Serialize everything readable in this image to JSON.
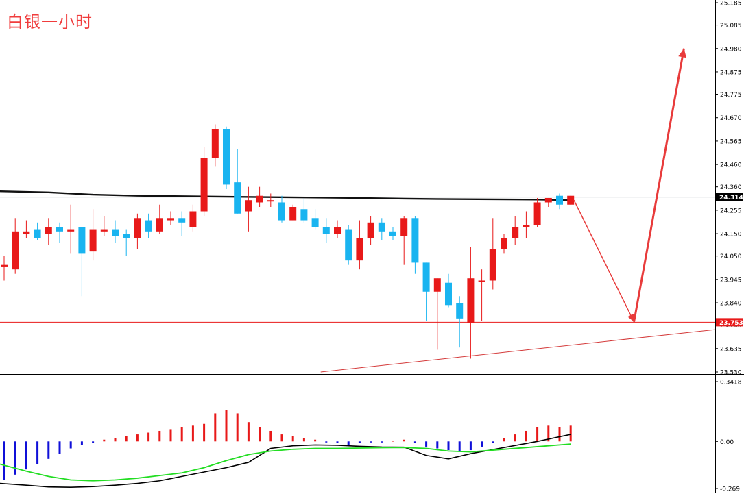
{
  "title": "白银一小时",
  "colors": {
    "bull": "#e81919",
    "bear": "#19b4f0",
    "ma_line": "#111111",
    "current_price_line": "#9aa0a6",
    "support_line": "#e81919",
    "trend_line": "#d43a3a",
    "forecast_arrow": "#e83b3b",
    "macd_pos": "#e81919",
    "macd_neg": "#1010d8",
    "signal_line": "#22dd22",
    "macd_line": "#000000",
    "tag_text": "#ffffff"
  },
  "price_axis": {
    "ticks": [
      "25.185",
      "25.085",
      "24.980",
      "24.875",
      "24.775",
      "24.670",
      "24.565",
      "24.460",
      "24.360",
      "24.255",
      "24.150",
      "24.050",
      "23.945",
      "23.840",
      "23.740",
      "23.635",
      "23.530"
    ],
    "current_price": "24.314",
    "level_price": "23.753"
  },
  "indicator_axis": {
    "ticks": [
      "0.3418",
      "0.00",
      "-0.269"
    ]
  },
  "chart_data": [
    {
      "type": "candlestick",
      "title": "白银一小时",
      "ylim": [
        23.52,
        25.2
      ],
      "candles": [
        {
          "o": 24.0,
          "h": 24.05,
          "l": 23.94,
          "c": 24.01
        },
        {
          "o": 23.99,
          "h": 24.22,
          "l": 23.97,
          "c": 24.16
        },
        {
          "o": 24.15,
          "h": 24.21,
          "l": 24.13,
          "c": 24.16
        },
        {
          "o": 24.17,
          "h": 24.2,
          "l": 24.12,
          "c": 24.13
        },
        {
          "o": 24.15,
          "h": 24.22,
          "l": 24.1,
          "c": 24.18
        },
        {
          "o": 24.18,
          "h": 24.2,
          "l": 24.11,
          "c": 24.16
        },
        {
          "o": 24.16,
          "h": 24.28,
          "l": 24.06,
          "c": 24.17
        },
        {
          "o": 24.18,
          "h": 24.18,
          "l": 23.87,
          "c": 24.06
        },
        {
          "o": 24.07,
          "h": 24.26,
          "l": 24.03,
          "c": 24.17
        },
        {
          "o": 24.16,
          "h": 24.23,
          "l": 24.14,
          "c": 24.17
        },
        {
          "o": 24.17,
          "h": 24.21,
          "l": 24.11,
          "c": 24.14
        },
        {
          "o": 24.15,
          "h": 24.17,
          "l": 24.05,
          "c": 24.13
        },
        {
          "o": 24.13,
          "h": 24.24,
          "l": 24.08,
          "c": 24.22
        },
        {
          "o": 24.21,
          "h": 24.24,
          "l": 24.13,
          "c": 24.16
        },
        {
          "o": 24.16,
          "h": 24.28,
          "l": 24.15,
          "c": 24.22
        },
        {
          "o": 24.21,
          "h": 24.25,
          "l": 24.19,
          "c": 24.22
        },
        {
          "o": 24.22,
          "h": 24.25,
          "l": 24.14,
          "c": 24.2
        },
        {
          "o": 24.18,
          "h": 24.28,
          "l": 24.16,
          "c": 24.25
        },
        {
          "o": 24.25,
          "h": 24.54,
          "l": 24.23,
          "c": 24.49
        },
        {
          "o": 24.49,
          "h": 24.64,
          "l": 24.45,
          "c": 24.62
        },
        {
          "o": 24.62,
          "h": 24.63,
          "l": 24.35,
          "c": 24.37
        },
        {
          "o": 24.38,
          "h": 24.53,
          "l": 24.24,
          "c": 24.24
        },
        {
          "o": 24.25,
          "h": 24.36,
          "l": 24.16,
          "c": 24.3
        },
        {
          "o": 24.29,
          "h": 24.36,
          "l": 24.27,
          "c": 24.32
        },
        {
          "o": 24.3,
          "h": 24.33,
          "l": 24.27,
          "c": 24.3
        },
        {
          "o": 24.29,
          "h": 24.32,
          "l": 24.2,
          "c": 24.21
        },
        {
          "o": 24.21,
          "h": 24.28,
          "l": 24.21,
          "c": 24.27
        },
        {
          "o": 24.26,
          "h": 24.31,
          "l": 24.2,
          "c": 24.21
        },
        {
          "o": 24.22,
          "h": 24.26,
          "l": 24.17,
          "c": 24.18
        },
        {
          "o": 24.18,
          "h": 24.22,
          "l": 24.11,
          "c": 24.15
        },
        {
          "o": 24.15,
          "h": 24.21,
          "l": 24.13,
          "c": 24.18
        },
        {
          "o": 24.17,
          "h": 24.19,
          "l": 24.01,
          "c": 24.03
        },
        {
          "o": 24.03,
          "h": 24.21,
          "l": 23.99,
          "c": 24.13
        },
        {
          "o": 24.13,
          "h": 24.23,
          "l": 24.1,
          "c": 24.2
        },
        {
          "o": 24.2,
          "h": 24.22,
          "l": 24.12,
          "c": 24.16
        },
        {
          "o": 24.16,
          "h": 24.18,
          "l": 24.12,
          "c": 24.14
        },
        {
          "o": 24.14,
          "h": 24.23,
          "l": 24.01,
          "c": 24.22
        },
        {
          "o": 24.22,
          "h": 24.23,
          "l": 23.97,
          "c": 24.02
        },
        {
          "o": 24.02,
          "h": 24.02,
          "l": 23.76,
          "c": 23.89
        },
        {
          "o": 23.89,
          "h": 23.95,
          "l": 23.63,
          "c": 23.95
        },
        {
          "o": 23.93,
          "h": 23.97,
          "l": 23.82,
          "c": 23.83
        },
        {
          "o": 23.84,
          "h": 23.87,
          "l": 23.64,
          "c": 23.77
        },
        {
          "o": 23.75,
          "h": 24.09,
          "l": 23.59,
          "c": 23.95
        },
        {
          "o": 23.94,
          "h": 23.99,
          "l": 23.76,
          "c": 23.94
        },
        {
          "o": 23.94,
          "h": 24.22,
          "l": 23.9,
          "c": 24.08
        },
        {
          "o": 24.08,
          "h": 24.15,
          "l": 24.06,
          "c": 24.13
        },
        {
          "o": 24.13,
          "h": 24.23,
          "l": 24.1,
          "c": 24.18
        },
        {
          "o": 24.18,
          "h": 24.25,
          "l": 24.13,
          "c": 24.19
        },
        {
          "o": 24.19,
          "h": 24.31,
          "l": 24.18,
          "c": 24.29
        },
        {
          "o": 24.29,
          "h": 24.31,
          "l": 24.27,
          "c": 24.31
        },
        {
          "o": 24.32,
          "h": 24.33,
          "l": 24.26,
          "c": 24.28
        },
        {
          "o": 24.28,
          "h": 24.32,
          "l": 24.28,
          "c": 24.32
        }
      ],
      "moving_average": [
        24.34,
        24.335,
        24.325,
        24.32,
        24.318,
        24.316,
        24.314,
        24.312,
        24.31,
        24.307,
        24.305,
        24.304,
        24.303,
        24.3
      ],
      "moving_average_anchor_index": [
        0,
        4,
        8,
        12,
        16,
        20,
        24,
        28,
        32,
        36,
        40,
        44,
        48,
        51
      ],
      "current_price": 24.314,
      "level_price": 23.753,
      "trend_line": [
        {
          "i": 28.5,
          "p": 23.53
        },
        {
          "i": 65.0,
          "p": 23.72
        }
      ],
      "forecast_path": [
        {
          "i": 51.3,
          "p": 24.3
        },
        {
          "i": 56.7,
          "p": 23.755
        },
        {
          "i": 61.2,
          "p": 24.98
        }
      ]
    },
    {
      "type": "bar",
      "title": "",
      "ylim": [
        -0.269,
        0.3418
      ],
      "histogram": [
        -0.22,
        -0.19,
        -0.16,
        -0.13,
        -0.1,
        -0.07,
        -0.04,
        -0.02,
        -0.01,
        0.01,
        0.02,
        0.03,
        0.04,
        0.05,
        0.06,
        0.07,
        0.08,
        0.09,
        0.1,
        0.16,
        0.18,
        0.16,
        0.11,
        0.08,
        0.06,
        0.04,
        0.03,
        0.02,
        0.01,
        -0.005,
        -0.01,
        -0.02,
        -0.01,
        -0.005,
        -0.005,
        0.005,
        0.01,
        -0.01,
        -0.03,
        -0.04,
        -0.05,
        -0.06,
        -0.05,
        -0.03,
        -0.01,
        0.02,
        0.04,
        0.06,
        0.08,
        0.09,
        0.08,
        0.09
      ],
      "macd_line": [
        -0.24,
        -0.25,
        -0.26,
        -0.262,
        -0.258,
        -0.25,
        -0.24,
        -0.225,
        -0.2,
        -0.175,
        -0.15,
        -0.12,
        -0.04,
        -0.025,
        -0.02,
        -0.022,
        -0.028,
        -0.032,
        -0.033,
        -0.08,
        -0.1,
        -0.07,
        0.0,
        0.04
      ],
      "macd_anchor_index": [
        0,
        2,
        4,
        6,
        8,
        10,
        12,
        14,
        16,
        18,
        20,
        22,
        24,
        26,
        28,
        30,
        32,
        34,
        36,
        38,
        40,
        42,
        48,
        51
      ],
      "signal_line": [
        -0.13,
        -0.17,
        -0.2,
        -0.22,
        -0.225,
        -0.22,
        -0.21,
        -0.195,
        -0.18,
        -0.15,
        -0.11,
        -0.075,
        -0.055,
        -0.045,
        -0.04,
        -0.04,
        -0.038,
        -0.036,
        -0.035,
        -0.04,
        -0.055,
        -0.06,
        -0.05,
        -0.03,
        -0.015
      ],
      "signal_anchor_index": [
        0,
        2,
        4,
        6,
        8,
        10,
        12,
        14,
        16,
        18,
        20,
        22,
        24,
        26,
        28,
        30,
        32,
        34,
        36,
        38,
        40,
        42,
        44,
        48,
        51
      ]
    }
  ]
}
